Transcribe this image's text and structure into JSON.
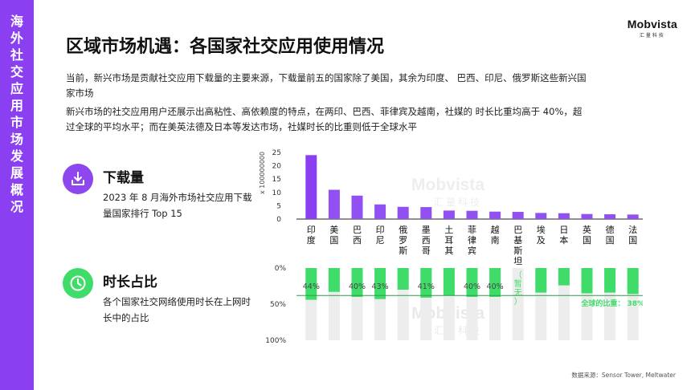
{
  "sidebar": {
    "title": "海外社交应用市场发展概况"
  },
  "logo": {
    "main": "Mobvista",
    "sub": "汇量科技"
  },
  "title": "区域市场机遇：各国家社交应用使用情况",
  "paragraph1": "当前，新兴市场是贡献社交应用下载量的主要来源，下载量前五的国家除了美国，其余为印度、  巴西、印尼、俄罗斯这些新兴国家市场",
  "paragraph2": "新兴市场的社交应用用户还展示出高粘性、高依赖度的特点，在两印、巴西、菲律宾及越南，社媒的  时长比重均高于 40%，超过全球的平均水平；而在美英法德及日本等发达市场，社媒时长的比重则低于全球水平",
  "section_download": {
    "title": "下载量",
    "desc": "2023 年 8 月海外市场社交应用下载量国家排行 Top 15",
    "icon": "download-icon"
  },
  "section_time": {
    "title": "时长占比",
    "desc": "各个国家社交网络使用时长在上网时长中的占比",
    "icon": "clock-icon"
  },
  "watermark": {
    "main": "Mobvista",
    "sub": "汇量科技"
  },
  "source": "数据来源：Sensor Tower, Meltwater",
  "colors": {
    "purple": "#8a3ff0",
    "purple_light": "#a260f5",
    "green": "#3fdc6a",
    "grey_bar": "#ededed",
    "avg_line": "#2e9e47"
  },
  "chart_data": [
    {
      "type": "bar",
      "categories": [
        "印度",
        "美国",
        "巴西",
        "印尼",
        "俄罗斯",
        "墨西哥",
        "土耳其",
        "菲律宾",
        "越南",
        "巴基斯坦",
        "埃及",
        "日本",
        "英国",
        "德国",
        "法国"
      ],
      "values": [
        24,
        11,
        8.8,
        5.5,
        4.6,
        4.5,
        3.2,
        3.1,
        2.8,
        2.7,
        2.3,
        2.2,
        1.9,
        1.8,
        1.7
      ],
      "ylabel": "x 100000000",
      "ylim": [
        0,
        25
      ],
      "yticks": [
        0,
        5,
        10,
        15,
        20,
        25
      ]
    },
    {
      "type": "bar",
      "categories": [
        "印度",
        "美国",
        "巴西",
        "印尼",
        "俄罗斯",
        "墨西哥",
        "土耳其",
        "菲律宾",
        "越南",
        "巴基斯坦",
        "埃及",
        "日本",
        "英国",
        "德国",
        "法国"
      ],
      "values": [
        44,
        33,
        40,
        43,
        30,
        41,
        38,
        40,
        40,
        null,
        34,
        24,
        35,
        34,
        36
      ],
      "labels": [
        "44%",
        "",
        "40%",
        "43%",
        "",
        "41%",
        "",
        "40%",
        "40%",
        "（暂无）",
        "",
        "",
        "",
        "",
        ""
      ],
      "ylim": [
        0,
        100
      ],
      "yticks": [
        "0%",
        "50%",
        "100%"
      ],
      "average": 38,
      "average_label": "全球的比重：  38%"
    }
  ]
}
